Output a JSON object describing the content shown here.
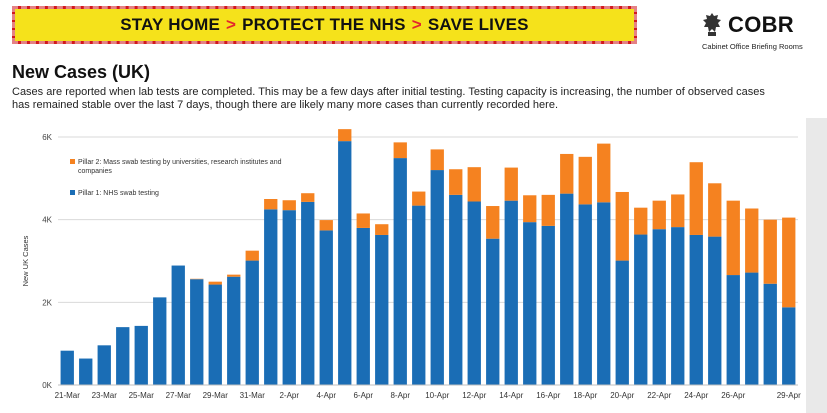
{
  "banner": {
    "parts": [
      "STAY HOME",
      "PROTECT THE NHS",
      "SAVE LIVES"
    ],
    "separator": ">"
  },
  "logo": {
    "title": "COBR",
    "subtitle": "Cabinet Office Briefing Rooms"
  },
  "slide": {
    "title": "New Cases (UK)",
    "description": "Cases are reported when lab tests are completed. This may be a few days after initial testing. Testing capacity is increasing, the number of observed cases has remained stable over the last 7 days, though there are likely many more cases than currently recorded here."
  },
  "colors": {
    "pillar1": "#1a6db5",
    "pillar2": "#f58220",
    "banner_bg": "#f5e21b",
    "banner_border": "#d1191f"
  },
  "chart_data": {
    "type": "bar",
    "stacked": true,
    "ylabel": "New UK Cases",
    "ylim": [
      0,
      6000
    ],
    "yticks": [
      0,
      2000,
      4000,
      6000
    ],
    "ytick_labels": [
      "0K",
      "2K",
      "4K",
      "6K"
    ],
    "grid": true,
    "legend_position": "top-left",
    "categories": [
      "21-Mar",
      "22-Mar",
      "23-Mar",
      "24-Mar",
      "25-Mar",
      "26-Mar",
      "27-Mar",
      "28-Mar",
      "29-Mar",
      "30-Mar",
      "31-Mar",
      "1-Apr",
      "2-Apr",
      "3-Apr",
      "4-Apr",
      "5-Apr",
      "6-Apr",
      "7-Apr",
      "8-Apr",
      "9-Apr",
      "10-Apr",
      "11-Apr",
      "12-Apr",
      "13-Apr",
      "14-Apr",
      "15-Apr",
      "16-Apr",
      "17-Apr",
      "18-Apr",
      "19-Apr",
      "20-Apr",
      "21-Apr",
      "22-Apr",
      "23-Apr",
      "24-Apr",
      "25-Apr",
      "26-Apr",
      "27-Apr",
      "28-Apr",
      "29-Apr"
    ],
    "x_tick_labels": [
      "21-Mar",
      "23-Mar",
      "25-Mar",
      "27-Mar",
      "29-Mar",
      "31-Mar",
      "2-Apr",
      "4-Apr",
      "6-Apr",
      "8-Apr",
      "10-Apr",
      "12-Apr",
      "14-Apr",
      "16-Apr",
      "18-Apr",
      "20-Apr",
      "22-Apr",
      "24-Apr",
      "26-Apr",
      "29-Apr"
    ],
    "series": [
      {
        "name": "Pillar 1: NHS swab testing",
        "values": [
          830,
          640,
          960,
          1400,
          1430,
          2120,
          2890,
          2560,
          2430,
          2620,
          3010,
          4250,
          4230,
          4430,
          3740,
          5900,
          3800,
          3630,
          5490,
          4340,
          5200,
          4600,
          4440,
          3540,
          4460,
          3940,
          3850,
          4630,
          4370,
          4420,
          3010,
          3640,
          3770,
          3820,
          3630,
          3590,
          2660,
          2720,
          2450,
          1880
        ]
      },
      {
        "name": "Pillar 2: Mass swab testing by universities, research institutes and companies",
        "values": [
          0,
          0,
          0,
          0,
          0,
          0,
          0,
          10,
          70,
          50,
          240,
          250,
          240,
          210,
          250,
          290,
          350,
          260,
          380,
          340,
          500,
          620,
          830,
          790,
          800,
          650,
          750,
          960,
          1150,
          1420,
          1660,
          650,
          690,
          790,
          1760,
          1290,
          1800,
          1550,
          1550,
          2170
        ]
      }
    ]
  }
}
